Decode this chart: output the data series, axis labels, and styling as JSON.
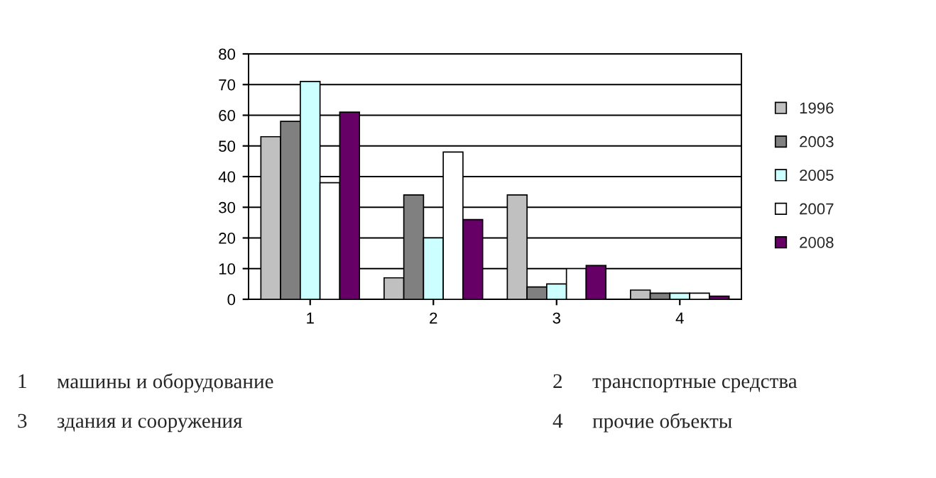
{
  "chart_data": {
    "type": "bar",
    "categories": [
      "1",
      "2",
      "3",
      "4"
    ],
    "series": [
      {
        "name": "1996",
        "color": "#c0c0c0",
        "values": [
          53,
          7,
          34,
          3
        ]
      },
      {
        "name": "2003",
        "color": "#808080",
        "values": [
          58,
          34,
          4,
          2
        ]
      },
      {
        "name": "2005",
        "color": "#ccffff",
        "values": [
          71,
          20,
          5,
          2
        ]
      },
      {
        "name": "2007",
        "color": "#ffffff",
        "values": [
          38,
          48,
          10,
          2
        ]
      },
      {
        "name": "2008",
        "color": "#660066",
        "values": [
          61,
          26,
          11,
          1
        ]
      }
    ],
    "ylim": [
      0,
      80
    ],
    "yticks": [
      0,
      10,
      20,
      30,
      40,
      50,
      60,
      70,
      80
    ],
    "grid": "y",
    "legend": "right",
    "annotations": [
      "1",
      "машины и оборудование",
      "2",
      "транспортные средства",
      "3",
      "здания и сооружения",
      "4",
      "прочие объекты"
    ]
  }
}
